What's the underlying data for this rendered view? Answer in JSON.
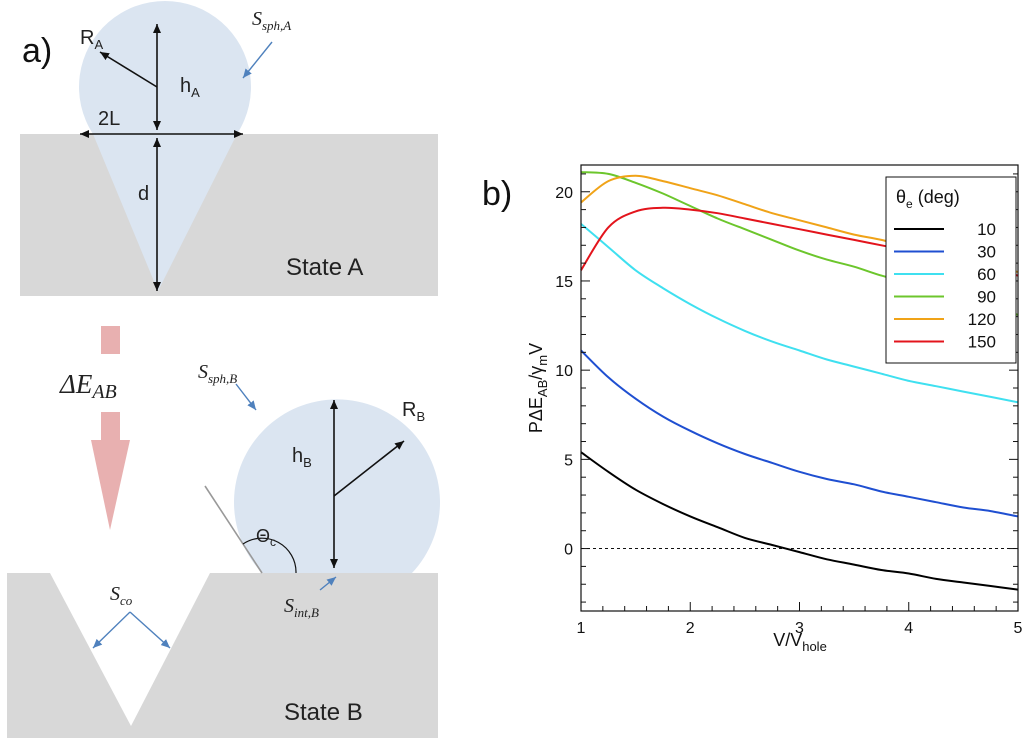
{
  "panel_a": {
    "label": "a)",
    "state_a": {
      "title": "State A",
      "r_label": "R",
      "r_sub": "A",
      "h_label": "h",
      "h_sub": "A",
      "width_label": "2L",
      "depth_label": "d",
      "surface_label": "S",
      "surface_sub": "sph,A"
    },
    "transition": {
      "label": "ΔE",
      "sub": "AB"
    },
    "state_b": {
      "title": "State B",
      "r_label": "R",
      "r_sub": "B",
      "h_label": "h",
      "h_sub": "B",
      "angle_label": "Θ",
      "angle_sub": "c",
      "surface_label": "S",
      "surface_sub": "sph,B",
      "cavity_label": "S",
      "cavity_sub": "co",
      "interface_label": "S",
      "interface_sub": "int,B"
    },
    "colors": {
      "droplet": "#dbe5f1",
      "substrate": "#d8d8d8",
      "arrow": "#e8b0b0",
      "pointer": "#4f81bd"
    }
  },
  "panel_b": {
    "label": "b)",
    "chart_data": {
      "type": "line",
      "xlabel": "V/V",
      "xlabel_sub": "hole",
      "ylabel_parts": [
        "PΔE",
        "AB",
        "/γ",
        "m",
        "V"
      ],
      "xlim": [
        1,
        5
      ],
      "ylim": [
        -3.5,
        21.5
      ],
      "x_ticks": [
        1,
        2,
        3,
        4,
        5
      ],
      "y_ticks": [
        0,
        5,
        10,
        15,
        20
      ],
      "reference_line": 0,
      "legend_title": "θ",
      "legend_title_sub": "e",
      "legend_title_rest": " (deg)",
      "legend_position": "top-right",
      "x": [
        1.0,
        1.25,
        1.5,
        1.75,
        2.0,
        2.25,
        2.5,
        2.75,
        3.0,
        3.25,
        3.5,
        3.75,
        4.0,
        4.25,
        4.5,
        4.75,
        5.0
      ],
      "series": [
        {
          "name": "10",
          "color": "#000000",
          "values": [
            5.4,
            4.3,
            3.3,
            2.5,
            1.8,
            1.2,
            0.6,
            0.2,
            -0.2,
            -0.6,
            -0.9,
            -1.2,
            -1.4,
            -1.7,
            -1.9,
            -2.1,
            -2.3
          ]
        },
        {
          "name": "30",
          "color": "#1f4fd1",
          "values": [
            11.1,
            9.6,
            8.4,
            7.4,
            6.6,
            5.9,
            5.3,
            4.8,
            4.3,
            3.9,
            3.6,
            3.2,
            2.9,
            2.6,
            2.3,
            2.1,
            1.8
          ]
        },
        {
          "name": "60",
          "color": "#3fe0f0",
          "values": [
            18.2,
            16.9,
            15.6,
            14.6,
            13.7,
            12.9,
            12.2,
            11.6,
            11.1,
            10.6,
            10.2,
            9.8,
            9.4,
            9.1,
            8.8,
            8.5,
            8.2
          ]
        },
        {
          "name": "90",
          "color": "#6cc62c",
          "values": [
            21.1,
            21.0,
            20.5,
            19.9,
            19.2,
            18.5,
            17.9,
            17.3,
            16.7,
            16.2,
            15.8,
            15.3,
            14.9,
            14.5,
            14.0,
            13.6,
            13.1
          ]
        },
        {
          "name": "120",
          "color": "#f0a318",
          "values": [
            19.4,
            20.6,
            20.9,
            20.6,
            20.2,
            19.8,
            19.3,
            18.8,
            18.4,
            18.0,
            17.6,
            17.3,
            16.9,
            16.6,
            16.2,
            15.9,
            15.5
          ]
        },
        {
          "name": "150",
          "color": "#e3141c",
          "values": [
            15.6,
            18.0,
            18.9,
            19.1,
            19.0,
            18.8,
            18.5,
            18.2,
            17.9,
            17.6,
            17.3,
            17.0,
            16.7,
            16.4,
            16.0,
            15.7,
            15.3
          ]
        }
      ]
    }
  }
}
